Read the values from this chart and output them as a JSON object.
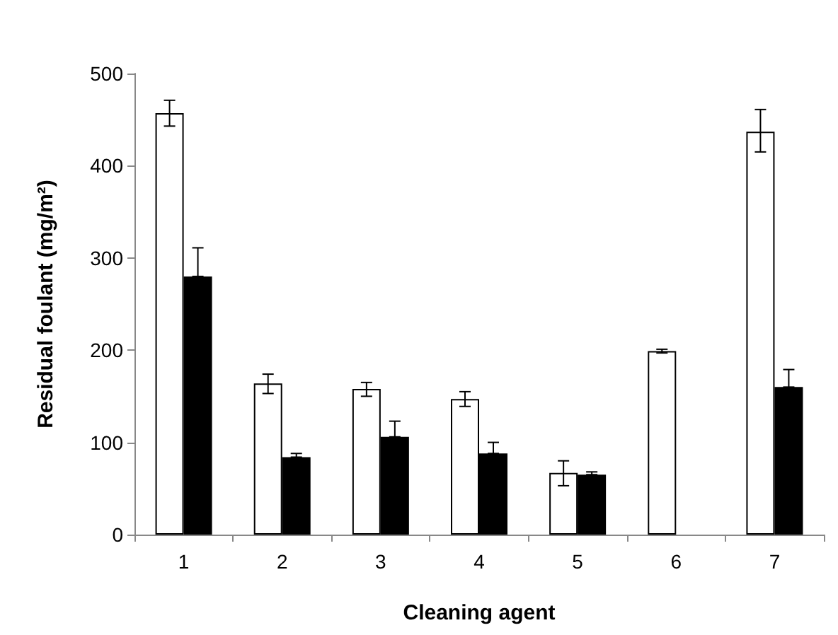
{
  "chart_data": {
    "type": "bar",
    "xlabel": "Cleaning agent",
    "ylabel": "Residual foulant (mg/m²)",
    "categories": [
      "1",
      "2",
      "3",
      "4",
      "5",
      "6",
      "7"
    ],
    "series": [
      {
        "color": "#ffffff",
        "values": [
          457,
          164,
          158,
          147,
          67,
          199,
          437
        ],
        "errors": [
          [
            443,
            471
          ],
          [
            153,
            174
          ],
          [
            150,
            165
          ],
          [
            139,
            155
          ],
          [
            53,
            80
          ],
          [
            197,
            201
          ],
          [
            415,
            461
          ]
        ]
      },
      {
        "color": "#000000",
        "values": [
          280,
          84,
          106,
          88,
          65,
          null,
          160
        ],
        "errors": [
          [
            280,
            311
          ],
          [
            84,
            88
          ],
          [
            106,
            123
          ],
          [
            88,
            100
          ],
          [
            65,
            68
          ],
          null,
          [
            160,
            179
          ]
        ]
      }
    ],
    "ylim": [
      0,
      500
    ],
    "yticks": [
      0,
      100,
      200,
      300,
      400,
      500
    ],
    "grid": false
  }
}
